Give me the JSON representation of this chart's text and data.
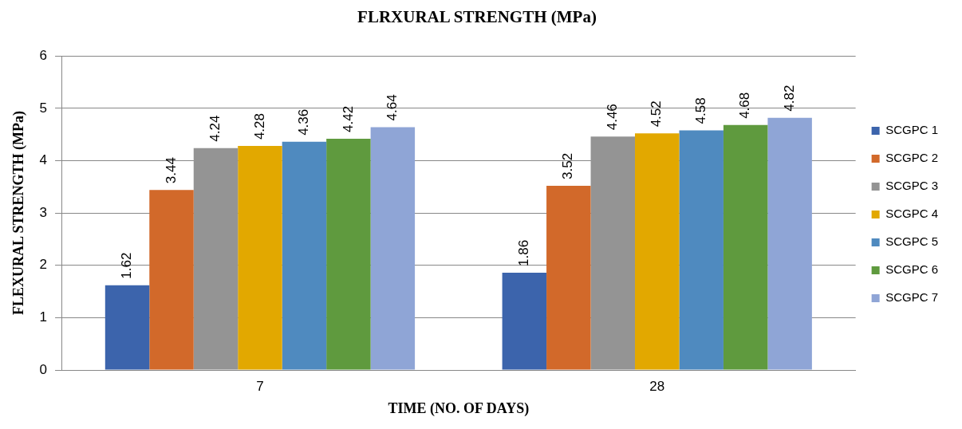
{
  "chart_data": {
    "type": "bar",
    "title": "FLRXURAL STRENGTH (MPa)",
    "xlabel": "TIME (NO. OF DAYS)",
    "ylabel": "FLEXURAL STRENGTH (MPa)",
    "categories": [
      "7",
      "28"
    ],
    "series": [
      {
        "name": "SCGPC 1",
        "color": "#3c64ac",
        "values": [
          1.62,
          1.86
        ]
      },
      {
        "name": "SCGPC 2",
        "color": "#d2692a",
        "values": [
          3.44,
          3.52
        ]
      },
      {
        "name": "SCGPC 3",
        "color": "#949494",
        "values": [
          4.24,
          4.46
        ]
      },
      {
        "name": "SCGPC 4",
        "color": "#e2a800",
        "values": [
          4.28,
          4.52
        ]
      },
      {
        "name": "SCGPC 5",
        "color": "#4f8abf",
        "values": [
          4.36,
          4.58
        ]
      },
      {
        "name": "SCGPC 6",
        "color": "#5f9a3e",
        "values": [
          4.42,
          4.68
        ]
      },
      {
        "name": "SCGPC 7",
        "color": "#8fa5d6",
        "values": [
          4.64,
          4.82
        ]
      }
    ],
    "ylim": [
      0,
      6
    ],
    "yticks": [
      0,
      1,
      2,
      3,
      4,
      5,
      6
    ],
    "grid": "y",
    "legend": "right",
    "data_labels": true
  }
}
